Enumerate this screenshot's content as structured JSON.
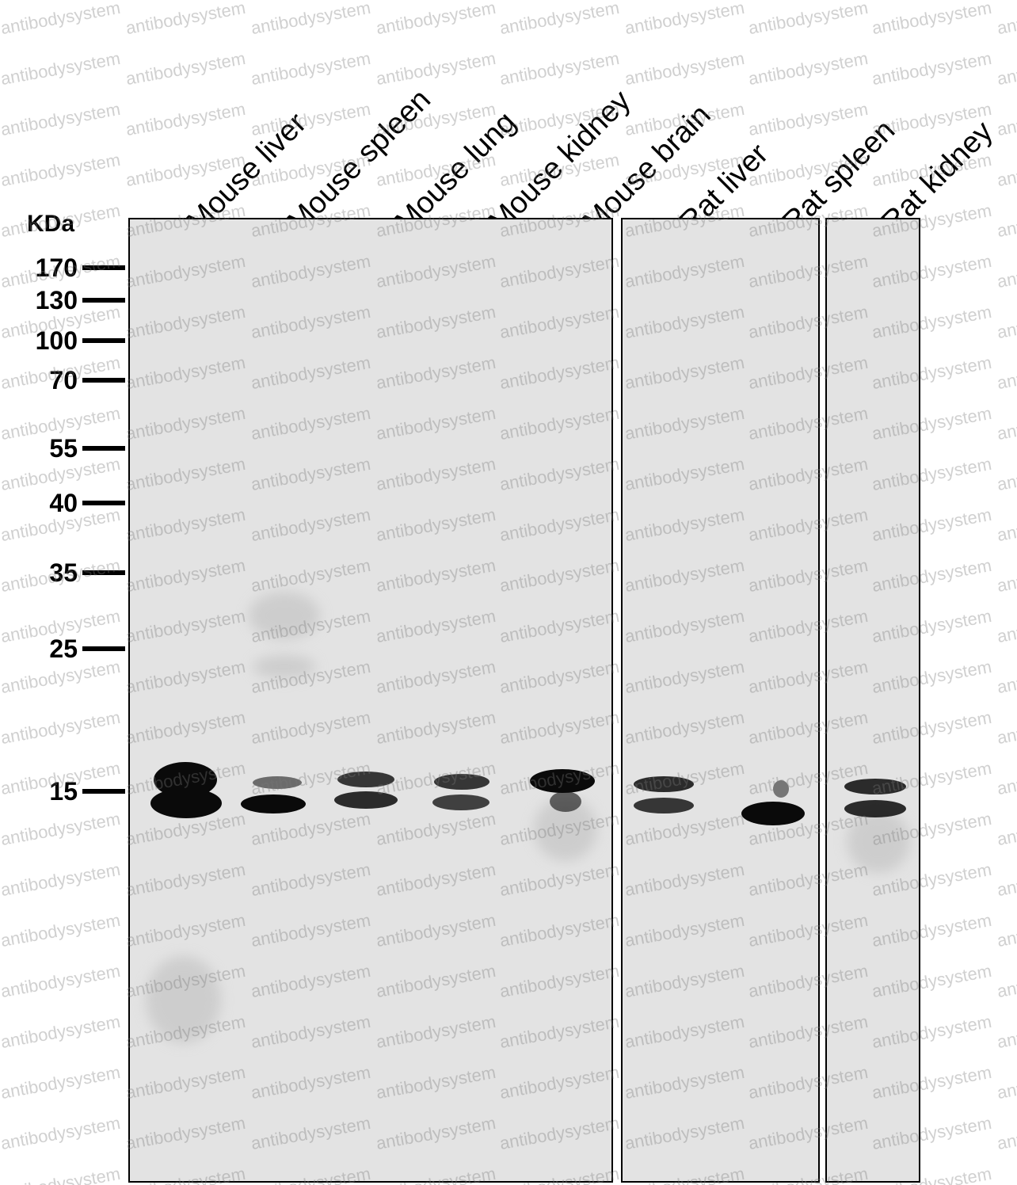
{
  "lanes": [
    "Mouse liver",
    "Mouse spleen",
    "Mouse lung",
    "Mouse kidney",
    "Mouse brain",
    "Rat liver",
    "Rat spleen",
    "Rat kidney"
  ],
  "markers": {
    "unit": "KDa",
    "values": [
      "170",
      "130",
      "100",
      "70",
      "55",
      "40",
      "35",
      "25",
      "15"
    ]
  },
  "watermark": "antibodysystem",
  "colors": {
    "membrane": "#e3e3e3",
    "band": "#0a0a0a",
    "frame": "#000000"
  }
}
